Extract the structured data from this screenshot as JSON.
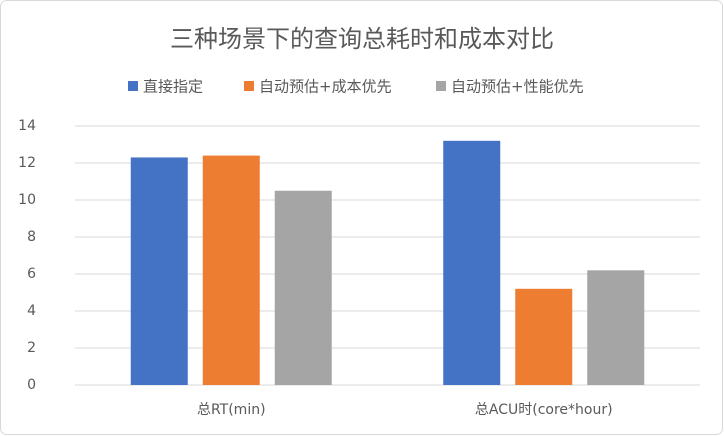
{
  "chart_data": {
    "type": "bar",
    "title": "三种场景下的查询总耗时和成本对比",
    "categories": [
      "总RT(min)",
      "总ACU时(core*hour)"
    ],
    "series": [
      {
        "name": "直接指定",
        "color": "#4472c4",
        "values": [
          12.3,
          13.2
        ]
      },
      {
        "name": "自动预估+成本优先",
        "color": "#ed7d31",
        "values": [
          12.4,
          5.2
        ]
      },
      {
        "name": "自动预估+性能优先",
        "color": "#a5a5a5",
        "values": [
          10.5,
          6.2
        ]
      }
    ],
    "ylim": [
      0,
      14
    ],
    "yticks": [
      0,
      2,
      4,
      6,
      8,
      10,
      12,
      14
    ],
    "grid": true
  }
}
